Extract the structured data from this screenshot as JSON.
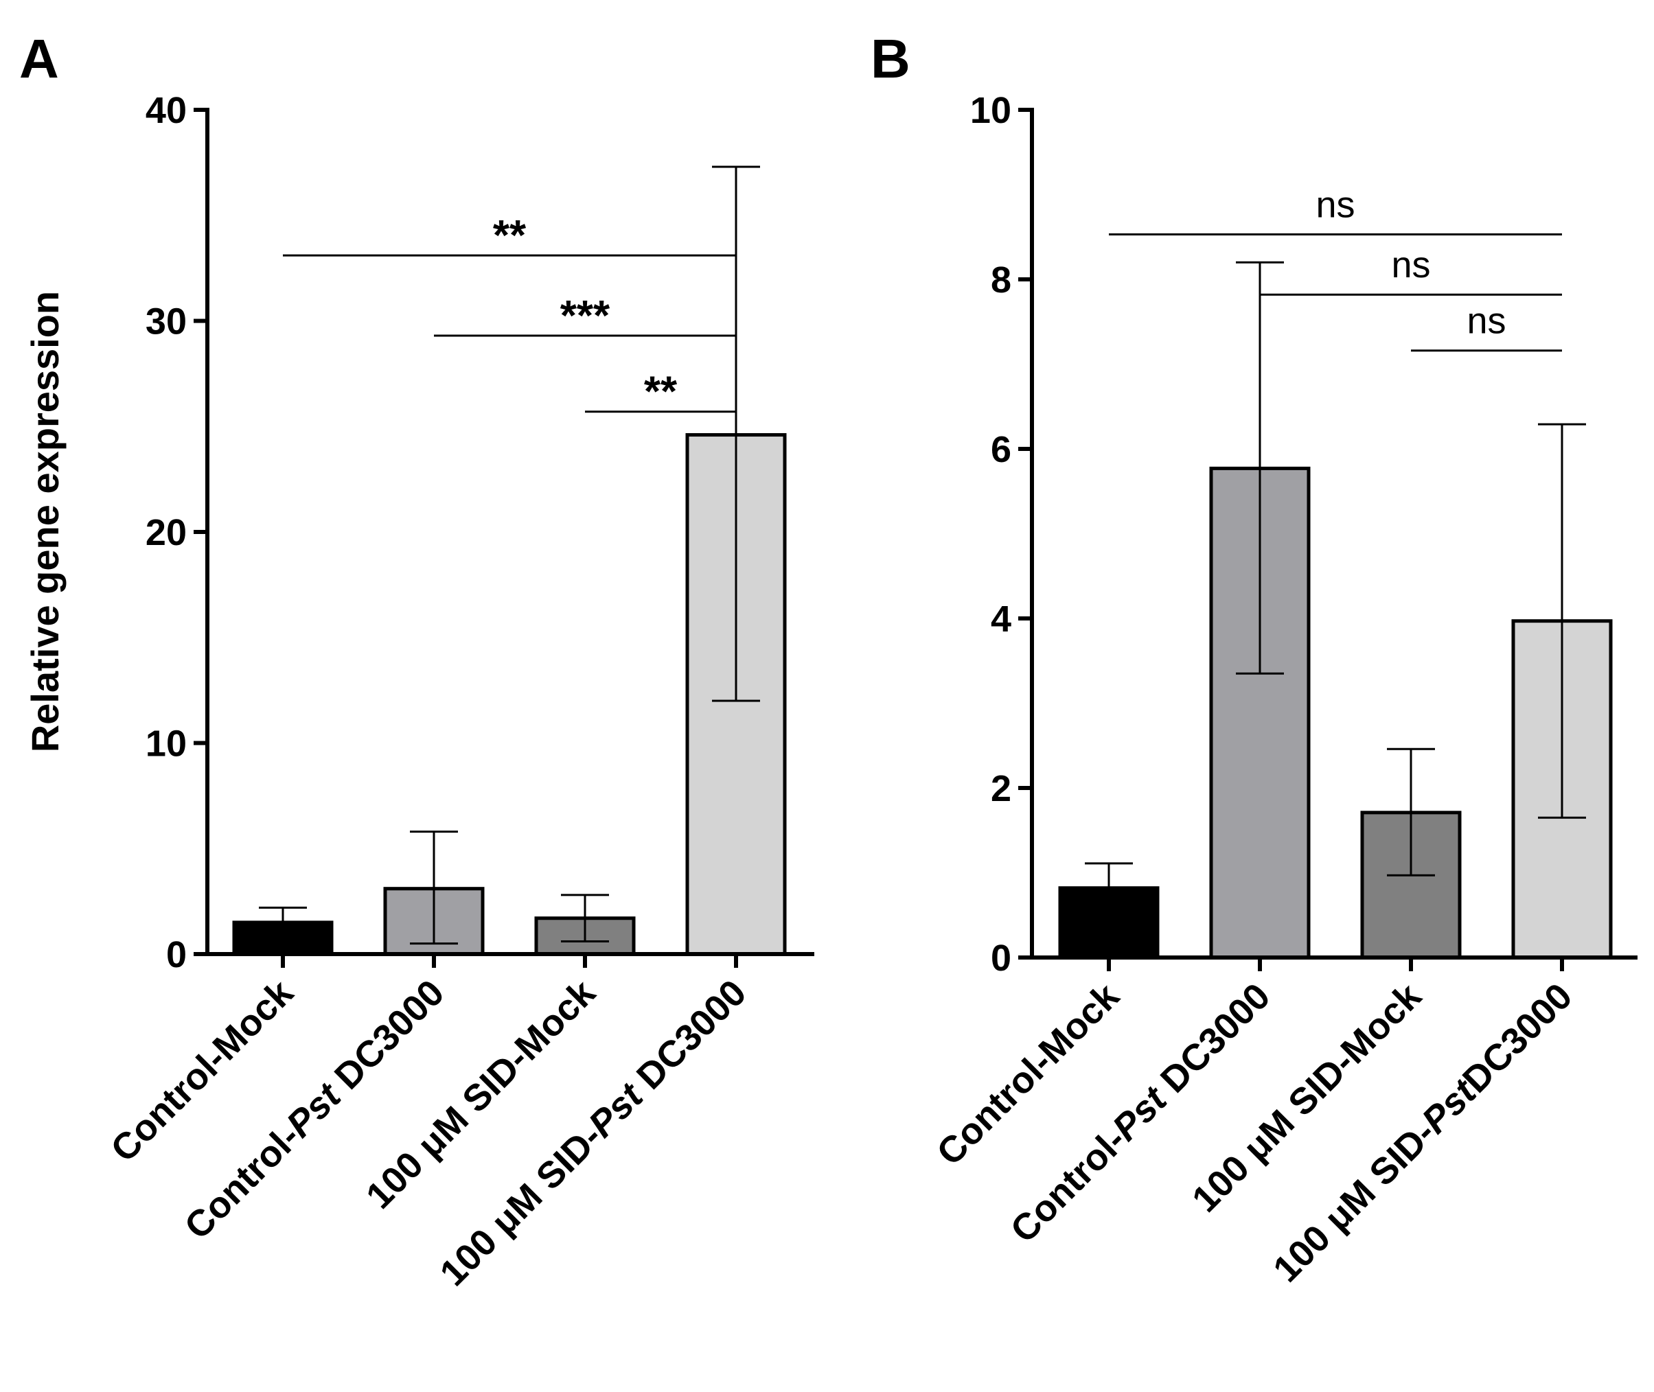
{
  "colors": {
    "axis": "#000000",
    "bar_outline": "#000000",
    "background": "#ffffff"
  },
  "chart_data": [
    {
      "type": "bar",
      "panel": "A",
      "ylabel": "Relative gene expression",
      "ylim": [
        0,
        40
      ],
      "yticks": [
        "0",
        "10",
        "20",
        "30",
        "40"
      ],
      "categories": [
        {
          "label": "Control-Mock",
          "prefix": "Control-Mock",
          "italic": "",
          "suffix": ""
        },
        {
          "label": "Control-Pst DC3000",
          "prefix": "Control-",
          "italic": "Pst",
          "suffix": " DC3000"
        },
        {
          "label": "100 μM SID-Mock",
          "prefix": "100 μM SID-Mock",
          "italic": "",
          "suffix": ""
        },
        {
          "label": "100 μM SID-Pst DC3000",
          "prefix": "100 μM SID-",
          "italic": "Pst",
          "suffix": " DC3000"
        }
      ],
      "values": [
        1.5,
        3.1,
        1.7,
        24.6
      ],
      "error_upper": [
        2.2,
        5.8,
        2.8,
        37.3
      ],
      "error_lower": [
        1.1,
        0.5,
        0.6,
        12.0
      ],
      "bar_colors": [
        "#000000",
        "#a0a0a4",
        "#808080",
        "#d4d4d4"
      ],
      "significance": [
        {
          "label": "**",
          "from": 0,
          "to": 3,
          "y": 33.1
        },
        {
          "label": "***",
          "from": 1,
          "to": 3,
          "y": 29.3
        },
        {
          "label": "**",
          "from": 2,
          "to": 3,
          "y": 25.7
        }
      ]
    },
    {
      "type": "bar",
      "panel": "B",
      "ylabel": "",
      "ylim": [
        0,
        10
      ],
      "yticks": [
        "0",
        "2",
        "4",
        "6",
        "8",
        "10"
      ],
      "categories": [
        {
          "label": "Control-Mock",
          "prefix": "Control-Mock",
          "italic": "",
          "suffix": ""
        },
        {
          "label": "Control-Pst DC3000",
          "prefix": "Control-",
          "italic": "Pst",
          "suffix": " DC3000"
        },
        {
          "label": "100 μM SID-Mock",
          "prefix": "100 μM SID-Mock",
          "italic": "",
          "suffix": ""
        },
        {
          "label": "100 μM SID-PstDC3000",
          "prefix": "100 μM SID-",
          "italic": "Pst",
          "suffix": "DC3000"
        }
      ],
      "values": [
        0.82,
        5.77,
        1.71,
        3.97
      ],
      "error_upper": [
        1.11,
        8.2,
        2.46,
        6.29
      ],
      "error_lower": [
        0.82,
        3.35,
        0.97,
        1.65
      ],
      "bar_colors": [
        "#000000",
        "#a0a0a4",
        "#808080",
        "#d4d4d4"
      ],
      "significance": [
        {
          "label": "ns",
          "from": 0,
          "to": 3,
          "y": 8.53
        },
        {
          "label": "ns",
          "from": 1,
          "to": 3,
          "y": 7.82
        },
        {
          "label": "ns",
          "from": 2,
          "to": 3,
          "y": 7.16
        }
      ]
    }
  ]
}
